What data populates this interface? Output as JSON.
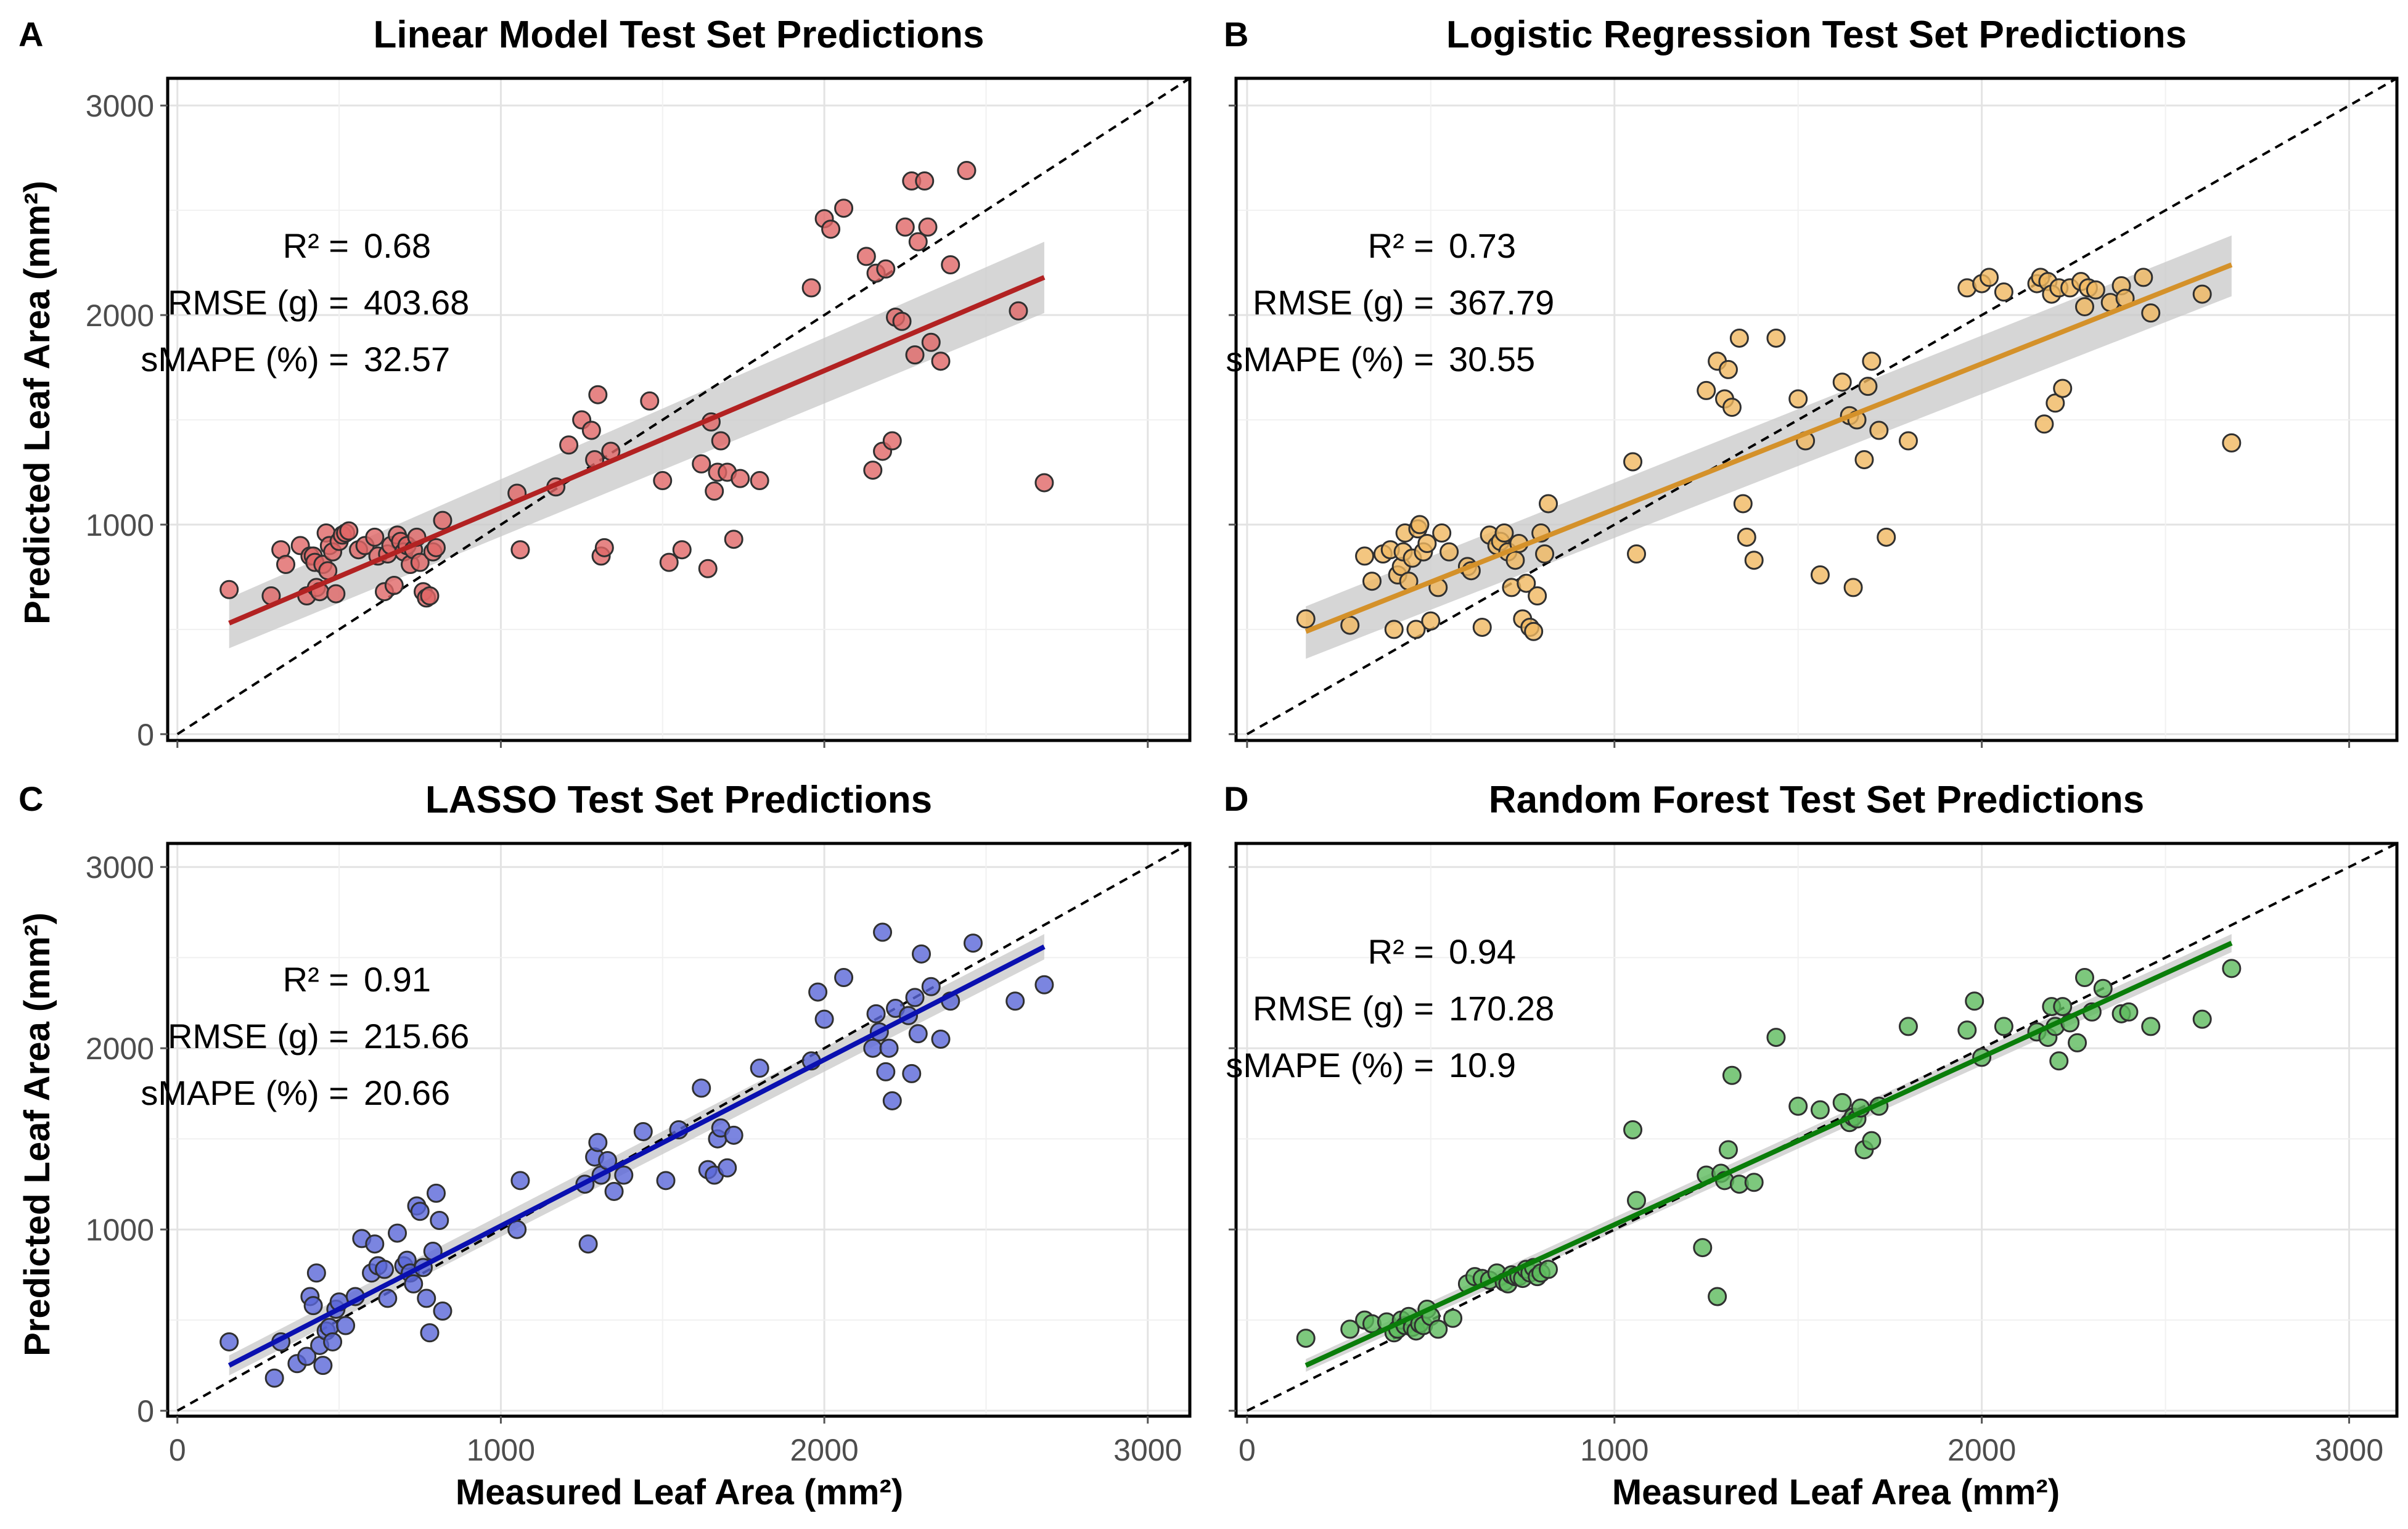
{
  "figure": {
    "xlabel": "Measured Leaf Area (mm²)",
    "ylabel": "Predicted Leaf Area (mm²)"
  },
  "chart_data": [
    {
      "type": "scatter",
      "panel_letter": "A",
      "title": "Linear Model Test Set Predictions",
      "xlim": [
        -30,
        3130
      ],
      "ylim": [
        -30,
        3130
      ],
      "xticks": [
        0,
        1000,
        2000,
        3000
      ],
      "yticks": [
        0,
        1000,
        2000,
        3000
      ],
      "grid": true,
      "show_x_labels": false,
      "show_y_labels": true,
      "color": "#b22222",
      "fill": "#e06666",
      "stats": [
        {
          "label": "R² =",
          "value": "0.68"
        },
        {
          "label": "RMSE (g) =",
          "value": "403.68"
        },
        {
          "label": "sMAPE (%) =",
          "value": "32.57"
        }
      ],
      "fit": {
        "x": [
          160,
          2680
        ],
        "y": [
          530,
          2180
        ],
        "band_lo": [
          410,
          2010
        ],
        "band_hi": [
          650,
          2350
        ]
      },
      "points": {
        "x": [
          160,
          290,
          320,
          335,
          380,
          400,
          410,
          420,
          425,
          430,
          440,
          450,
          460,
          465,
          470,
          480,
          490,
          500,
          510,
          520,
          530,
          560,
          580,
          610,
          620,
          640,
          650,
          660,
          670,
          680,
          690,
          700,
          710,
          720,
          730,
          740,
          750,
          760,
          770,
          780,
          790,
          800,
          820,
          1050,
          1060,
          1170,
          1210,
          1250,
          1280,
          1290,
          1300,
          1310,
          1320,
          1340,
          1460,
          1500,
          1520,
          1560,
          1620,
          1640,
          1650,
          1660,
          1670,
          1680,
          1700,
          1720,
          1740,
          1800,
          1960,
          2000,
          2020,
          2060,
          2130,
          2150,
          2160,
          2180,
          2190,
          2210,
          2220,
          2240,
          2250,
          2270,
          2280,
          2290,
          2310,
          2320,
          2330,
          2360,
          2390,
          2440,
          2600,
          2680
        ],
        "y": [
          690,
          660,
          880,
          810,
          900,
          660,
          850,
          850,
          820,
          700,
          680,
          810,
          960,
          780,
          900,
          870,
          670,
          920,
          950,
          960,
          970,
          880,
          900,
          940,
          850,
          680,
          860,
          900,
          710,
          950,
          920,
          870,
          900,
          810,
          880,
          940,
          820,
          680,
          650,
          660,
          870,
          890,
          1020,
          1150,
          880,
          1180,
          1380,
          1500,
          1450,
          1310,
          1620,
          850,
          890,
          1350,
          1590,
          1210,
          820,
          880,
          1290,
          790,
          1490,
          1160,
          1250,
          1400,
          1250,
          930,
          1220,
          1210,
          2130,
          2460,
          2410,
          2510,
          2280,
          1260,
          2200,
          1350,
          2220,
          1400,
          1990,
          1970,
          2420,
          2640,
          1810,
          2350,
          2640,
          2420,
          1870,
          1780,
          2240,
          2690,
          2020,
          1200
        ]
      }
    },
    {
      "type": "scatter",
      "panel_letter": "B",
      "title": "Logistic Regression Test Set Predictions",
      "xlim": [
        -30,
        3130
      ],
      "ylim": [
        -30,
        3130
      ],
      "xticks": [
        0,
        1000,
        2000,
        3000
      ],
      "yticks": [
        0,
        1000,
        2000,
        3000
      ],
      "grid": true,
      "show_x_labels": false,
      "show_y_labels": false,
      "color": "#d4912a",
      "fill": "#f0b860",
      "stats": [
        {
          "label": "R² =",
          "value": "0.73"
        },
        {
          "label": "RMSE (g) =",
          "value": "367.79"
        },
        {
          "label": "sMAPE (%) =",
          "value": "30.55"
        }
      ],
      "fit": {
        "x": [
          160,
          2680
        ],
        "y": [
          490,
          2240
        ],
        "band_lo": [
          360,
          2090
        ],
        "band_hi": [
          610,
          2380
        ]
      },
      "points": {
        "x": [
          160,
          280,
          320,
          340,
          370,
          390,
          400,
          410,
          420,
          425,
          430,
          440,
          450,
          460,
          465,
          470,
          480,
          490,
          500,
          520,
          530,
          550,
          600,
          610,
          640,
          660,
          680,
          690,
          700,
          710,
          720,
          730,
          740,
          750,
          760,
          770,
          780,
          790,
          800,
          810,
          820,
          1050,
          1060,
          1250,
          1280,
          1300,
          1310,
          1320,
          1340,
          1350,
          1360,
          1380,
          1440,
          1500,
          1520,
          1560,
          1620,
          1640,
          1650,
          1660,
          1680,
          1690,
          1700,
          1720,
          1740,
          1800,
          1960,
          2000,
          2020,
          2060,
          2150,
          2160,
          2170,
          2180,
          2190,
          2200,
          2210,
          2220,
          2240,
          2270,
          2280,
          2290,
          2310,
          2350,
          2380,
          2390,
          2440,
          2460,
          2600,
          2680
        ],
        "y": [
          550,
          520,
          850,
          730,
          860,
          880,
          500,
          760,
          800,
          870,
          960,
          730,
          840,
          500,
          980,
          1000,
          870,
          910,
          540,
          700,
          960,
          870,
          800,
          780,
          510,
          950,
          900,
          920,
          960,
          870,
          700,
          830,
          910,
          550,
          720,
          510,
          490,
          660,
          960,
          860,
          1100,
          1300,
          860,
          1640,
          1780,
          1600,
          1740,
          1560,
          1890,
          1100,
          940,
          830,
          1890,
          1600,
          1400,
          760,
          1680,
          1520,
          700,
          1500,
          1310,
          1660,
          1780,
          1450,
          940,
          1400,
          2130,
          2150,
          2180,
          2110,
          2150,
          2180,
          1480,
          2160,
          2100,
          1580,
          2130,
          1650,
          2130,
          2160,
          2040,
          2130,
          2120,
          2060,
          2140,
          2080,
          2180,
          2010,
          2100,
          1390
        ]
      }
    },
    {
      "type": "scatter",
      "panel_letter": "C",
      "title": "LASSO Test Set Predictions",
      "xlim": [
        -30,
        3130
      ],
      "ylim": [
        -30,
        3130
      ],
      "xticks": [
        0,
        1000,
        2000,
        3000
      ],
      "yticks": [
        0,
        1000,
        2000,
        3000
      ],
      "grid": true,
      "show_x_labels": true,
      "show_y_labels": true,
      "color": "#0a10b0",
      "fill": "#5a66d8",
      "stats": [
        {
          "label": "R² =",
          "value": "0.91"
        },
        {
          "label": "RMSE (g) =",
          "value": "215.66"
        },
        {
          "label": "sMAPE (%) =",
          "value": "20.66"
        }
      ],
      "fit": {
        "x": [
          160,
          2680
        ],
        "y": [
          250,
          2560
        ],
        "band_lo": [
          195,
          2490
        ],
        "band_hi": [
          305,
          2630
        ]
      },
      "points": {
        "x": [
          160,
          300,
          320,
          370,
          400,
          410,
          420,
          430,
          440,
          450,
          460,
          470,
          480,
          490,
          500,
          520,
          550,
          570,
          600,
          610,
          620,
          640,
          650,
          680,
          700,
          710,
          720,
          730,
          740,
          750,
          760,
          770,
          780,
          790,
          800,
          810,
          820,
          1050,
          1060,
          1260,
          1270,
          1290,
          1300,
          1310,
          1330,
          1350,
          1380,
          1440,
          1510,
          1550,
          1620,
          1640,
          1660,
          1670,
          1680,
          1700,
          1720,
          1800,
          1960,
          1980,
          2000,
          2060,
          2150,
          2160,
          2170,
          2180,
          2190,
          2200,
          2210,
          2220,
          2260,
          2270,
          2280,
          2290,
          2300,
          2330,
          2360,
          2390,
          2460,
          2590,
          2680
        ],
        "y": [
          380,
          180,
          380,
          260,
          300,
          630,
          580,
          760,
          360,
          250,
          440,
          460,
          380,
          560,
          600,
          470,
          630,
          950,
          760,
          920,
          800,
          780,
          620,
          980,
          800,
          830,
          760,
          700,
          1130,
          1100,
          790,
          620,
          430,
          880,
          1200,
          1050,
          550,
          1000,
          1270,
          1250,
          920,
          1400,
          1480,
          1300,
          1380,
          1210,
          1300,
          1540,
          1270,
          1550,
          1780,
          1330,
          1300,
          1500,
          1560,
          1340,
          1520,
          1890,
          1930,
          2310,
          2160,
          2390,
          2000,
          2190,
          2090,
          2640,
          1870,
          2000,
          1710,
          2220,
          2180,
          1860,
          2280,
          2080,
          2520,
          2340,
          2050,
          2260,
          2580,
          2260,
          2350
        ]
      }
    },
    {
      "type": "scatter",
      "panel_letter": "D",
      "title": "Random Forest Test Set Predictions",
      "xlim": [
        -30,
        3130
      ],
      "ylim": [
        -30,
        3130
      ],
      "xticks": [
        0,
        1000,
        2000,
        3000
      ],
      "yticks": [
        0,
        1000,
        2000,
        3000
      ],
      "grid": true,
      "show_x_labels": true,
      "show_y_labels": false,
      "color": "#0a7d0a",
      "fill": "#5cba5c",
      "stats": [
        {
          "label": "R² =",
          "value": "0.94"
        },
        {
          "label": "RMSE (g) =",
          "value": "170.28"
        },
        {
          "label": "sMAPE (%) =",
          "value": "10.9"
        }
      ],
      "fit": {
        "x": [
          160,
          2680
        ],
        "y": [
          250,
          2580
        ],
        "band_lo": [
          215,
          2530
        ],
        "band_hi": [
          285,
          2630
        ]
      },
      "points": {
        "x": [
          160,
          280,
          320,
          340,
          380,
          400,
          410,
          420,
          430,
          440,
          450,
          460,
          470,
          480,
          490,
          500,
          520,
          560,
          600,
          620,
          640,
          660,
          680,
          700,
          710,
          720,
          730,
          740,
          750,
          760,
          770,
          780,
          790,
          800,
          820,
          1050,
          1060,
          1240,
          1250,
          1280,
          1290,
          1300,
          1310,
          1320,
          1340,
          1380,
          1440,
          1500,
          1560,
          1620,
          1640,
          1650,
          1660,
          1670,
          1680,
          1700,
          1720,
          1800,
          1960,
          1980,
          2000,
          2060,
          2150,
          2180,
          2190,
          2200,
          2210,
          2220,
          2240,
          2260,
          2280,
          2300,
          2330,
          2380,
          2400,
          2460,
          2600,
          2680
        ],
        "y": [
          400,
          450,
          500,
          480,
          490,
          430,
          450,
          500,
          470,
          520,
          460,
          440,
          480,
          470,
          560,
          520,
          450,
          510,
          700,
          740,
          730,
          720,
          760,
          710,
          700,
          750,
          740,
          740,
          730,
          780,
          760,
          790,
          740,
          760,
          780,
          1550,
          1160,
          900,
          1300,
          630,
          1310,
          1270,
          1440,
          1850,
          1250,
          1260,
          2060,
          1680,
          1660,
          1700,
          1590,
          1620,
          1610,
          1670,
          1440,
          1490,
          1680,
          2120,
          2100,
          2260,
          1950,
          2120,
          2090,
          2060,
          2230,
          2120,
          1930,
          2230,
          2140,
          2030,
          2390,
          2200,
          2330,
          2190,
          2200,
          2120,
          2160,
          2440
        ]
      }
    }
  ]
}
